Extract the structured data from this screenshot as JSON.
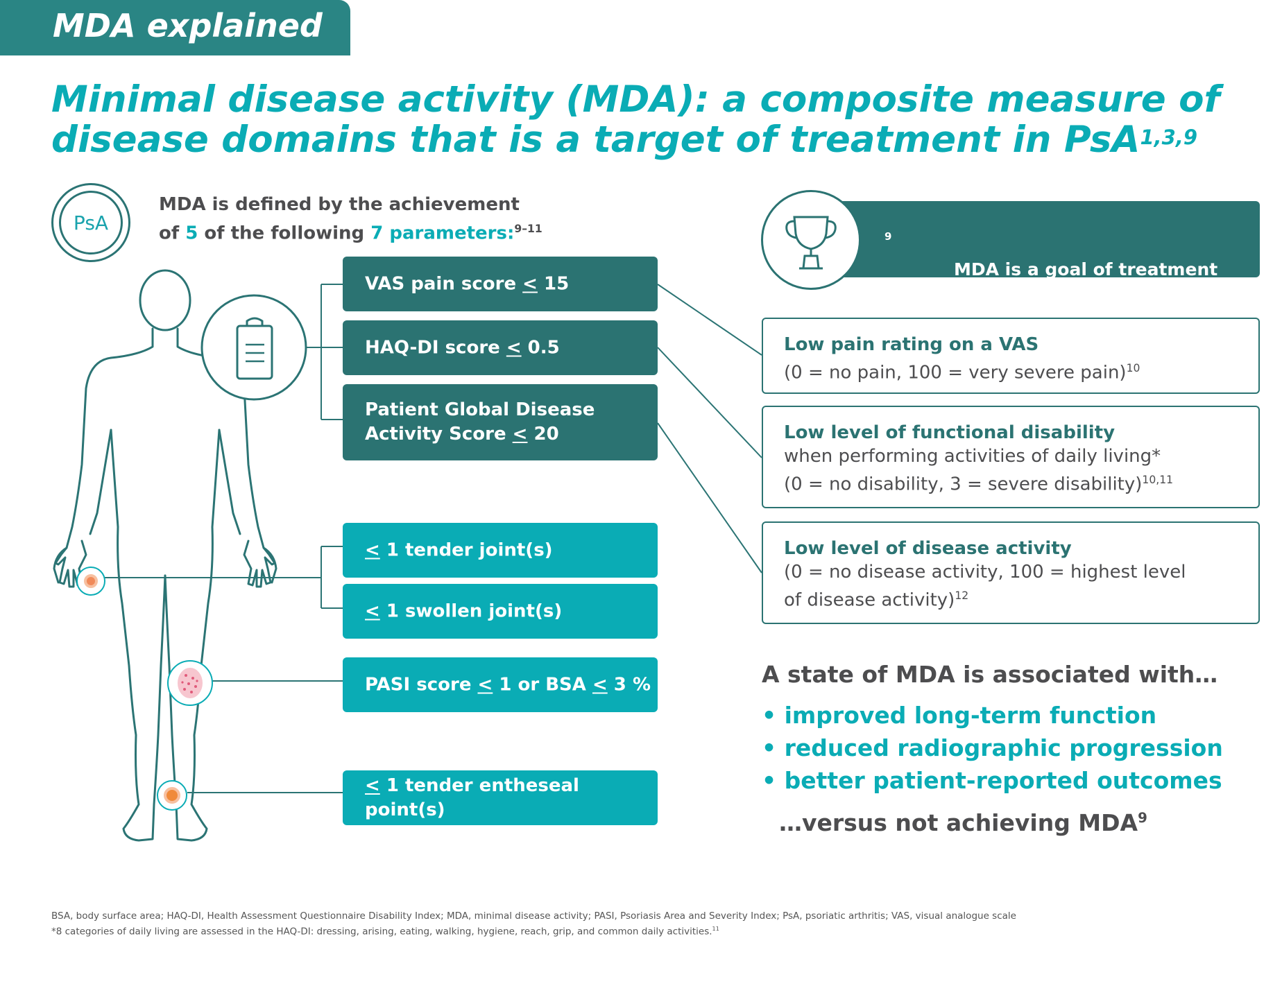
{
  "header": {
    "tab_label": "MDA explained"
  },
  "title": {
    "text": "Minimal disease activity (MDA): a composite measure of disease domains that is a target of treatment in PsA",
    "sup": "1,3,9"
  },
  "psa_icon": {
    "label": "PsA"
  },
  "intro": {
    "line1": "MDA is defined by the achievement",
    "line2_a": "of ",
    "line2_num1": "5",
    "line2_b": " of the following ",
    "line2_num2": "7",
    "line2_c": " parameters:",
    "line2_sup": "9–11"
  },
  "parameters": {
    "vas": {
      "text": "VAS pain score ",
      "op": "<",
      "val": " 15"
    },
    "haq": {
      "text": "HAQ-DI score ",
      "op": "<",
      "val": " 0.5"
    },
    "pgda": {
      "line1": "Patient Global Disease",
      "line2": "Activity Score ",
      "op": "<",
      "val": " 20"
    },
    "tender": {
      "op": "<",
      "text": " 1 tender joint(s)"
    },
    "swollen": {
      "op": "<",
      "text": " 1 swollen joint(s)"
    },
    "pasi": {
      "a": "PASI score ",
      "op1": "<",
      "b": " 1 or BSA ",
      "op2": "<",
      "c": " 3 %"
    },
    "enthesis": {
      "op": "<",
      "text": " 1 tender entheseal point(s)"
    }
  },
  "goal": {
    "text": "MDA is a goal of treatment",
    "sup": "9"
  },
  "descriptions": {
    "pain": {
      "heading": "Low pain rating on a VAS",
      "line1": "(0 = no pain, 100 = very severe pain)",
      "sup": "10"
    },
    "disability": {
      "heading": "Low level of functional disability",
      "line1": "when performing activities of daily living*",
      "line2": "(0 = no disability, 3 = severe disability)",
      "sup": "10,11"
    },
    "activity": {
      "heading": "Low level of disease activity",
      "line1": "(0 = no disease activity, 100 = highest level",
      "line2": "of disease activity)",
      "sup": "12"
    }
  },
  "association": {
    "heading": "A state of MDA is associated with…",
    "bullets": [
      "improved long-term function",
      "reduced radiographic progression",
      "better patient-reported outcomes"
    ],
    "versus": "…versus not achieving MDA",
    "versus_sup": "9"
  },
  "footnotes": {
    "abbrev": "BSA, body surface area; HAQ-DI, Health Assessment Questionnaire Disability Index; MDA, minimal disease activity; PASI, Psoriasis Area and Severity Index; PsA, psoriatic arthritis; VAS, visual analogue scale",
    "star": "*8 categories of daily living are assessed in the HAQ-DI: dressing, arising, eating, walking, hygiene, reach, grip, and common daily activities.",
    "star_sup": "11"
  },
  "colors": {
    "teal_dark": "#2b7372",
    "teal_light": "#0aacb5",
    "text_gray": "#4d4d4f"
  }
}
